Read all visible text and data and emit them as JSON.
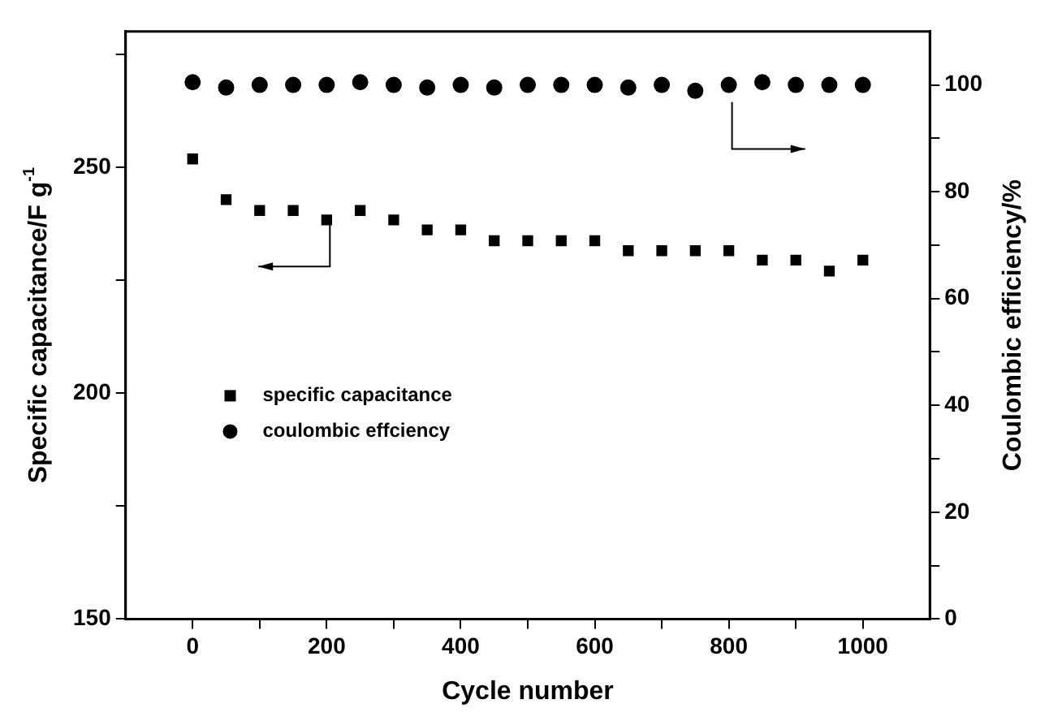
{
  "chart_data": {
    "type": "scatter",
    "xlabel": "Cycle number",
    "ylabel": "Specific capacitance/F g$^{-1}$",
    "y2label": "Coulombic efficiency/%",
    "xlim": [
      -100,
      1100
    ],
    "xticks": [
      0,
      {
        "value": 100,
        "label": null
      },
      200,
      {
        "value": 300,
        "label": null
      },
      400,
      {
        "value": 500,
        "label": null
      },
      600,
      {
        "value": 700,
        "label": null
      },
      800,
      {
        "value": 900,
        "label": null
      },
      1000
    ],
    "ylim": [
      150,
      280
    ],
    "yticks": [
      150,
      {
        "value": 175,
        "label": null
      },
      200,
      {
        "value": 225,
        "label": null
      },
      250,
      {
        "value": 275,
        "label": null
      }
    ],
    "y2lim": [
      0,
      110
    ],
    "y2ticks": [
      0,
      {
        "value": 10,
        "label": null
      },
      20,
      {
        "value": 30,
        "label": null
      },
      40,
      {
        "value": 50,
        "label": null
      },
      60,
      {
        "value": 70,
        "label": null
      },
      80,
      {
        "value": 90,
        "label": null
      },
      100
    ],
    "x": [
      0,
      50,
      100,
      150,
      200,
      250,
      300,
      350,
      400,
      450,
      500,
      550,
      600,
      650,
      700,
      750,
      800,
      850,
      900,
      950,
      1000
    ],
    "grid": false,
    "legend": "left",
    "series": [
      {
        "name": "specific capacitance",
        "color": "#000000",
        "marker": "square",
        "values": [
          251.8,
          242.8,
          240.4,
          240.4,
          238.3,
          240.4,
          238.3,
          236.1,
          236.1,
          233.7,
          233.7,
          233.7,
          233.7,
          231.5,
          231.5,
          231.5,
          231.5,
          229.4,
          229.4,
          227.0,
          229.4
        ]
      },
      {
        "name": "coulombic effciency",
        "color": "#000000",
        "marker": "circle",
        "axis": "y2",
        "values": [
          100.5,
          99.5,
          100,
          100,
          100,
          100.5,
          100,
          99.5,
          100,
          99.5,
          100,
          100,
          100,
          99.5,
          100,
          98.9,
          100,
          100.5,
          100,
          100,
          100
        ]
      }
    ]
  }
}
